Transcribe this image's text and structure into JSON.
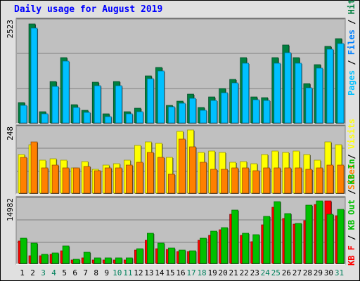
{
  "title": "Daily usage for August 2019",
  "colors": {
    "hits": "#008040",
    "files": "#0080ff",
    "pages": "#00c0ff",
    "visits": "#ffff00",
    "sites": "#ff8000",
    "kbin": "#00c000",
    "kbout": "#00c000",
    "kbf": "#ff0000",
    "weekday_label": "#000000",
    "weekend_label": "#00805c",
    "panel_bg": "#c0c0c0"
  },
  "chart_data": [
    {
      "type": "bar",
      "panel": "hits",
      "ymax_label": "2523",
      "ylim": [
        0,
        2523
      ],
      "categories": [
        "1",
        "2",
        "3",
        "4",
        "5",
        "6",
        "7",
        "8",
        "9",
        "10",
        "11",
        "12",
        "13",
        "14",
        "15",
        "16",
        "17",
        "18",
        "19",
        "20",
        "21",
        "22",
        "23",
        "24",
        "25",
        "26",
        "27",
        "28",
        "29",
        "30",
        "31"
      ],
      "legend": [
        {
          "label": "Hits",
          "color": "#008040"
        },
        {
          "label": "Files",
          "color": "#0080ff"
        },
        {
          "label": "Pages",
          "color": "#00c0ff"
        }
      ],
      "series": [
        {
          "name": "Hits",
          "values": [
            520,
            2480,
            300,
            1050,
            1650,
            480,
            340,
            1030,
            240,
            1050,
            300,
            390,
            1200,
            1410,
            460,
            560,
            740,
            400,
            660,
            870,
            1100,
            1640,
            660,
            640,
            1650,
            1960,
            1640,
            990,
            1470,
            1920,
            2120
          ]
        },
        {
          "name": "Pages",
          "values": [
            460,
            2380,
            240,
            930,
            1560,
            410,
            280,
            950,
            170,
            940,
            240,
            300,
            1120,
            1310,
            420,
            510,
            630,
            330,
            570,
            770,
            1010,
            1510,
            600,
            580,
            1510,
            1770,
            1510,
            890,
            1380,
            1850,
            2000
          ]
        }
      ]
    },
    {
      "type": "bar",
      "panel": "visits",
      "ymax_label": "248",
      "ylim": [
        0,
        248
      ],
      "categories": [
        "1",
        "2",
        "3",
        "4",
        "5",
        "6",
        "7",
        "8",
        "9",
        "10",
        "11",
        "12",
        "13",
        "14",
        "15",
        "16",
        "17",
        "18",
        "19",
        "20",
        "21",
        "22",
        "23",
        "24",
        "25",
        "26",
        "27",
        "28",
        "29",
        "30",
        "31"
      ],
      "legend": [
        {
          "label": "Visits",
          "color": "#ffff00"
        },
        {
          "label": "Sites",
          "color": "#ff8000"
        }
      ],
      "series": [
        {
          "name": "Visits",
          "values": [
            150,
            190,
            130,
            135,
            130,
            100,
            125,
            95,
            110,
            115,
            130,
            185,
            200,
            195,
            140,
            240,
            245,
            160,
            165,
            160,
            120,
            125,
            115,
            150,
            165,
            160,
            165,
            150,
            130,
            200,
            190
          ]
        },
        {
          "name": "Sites",
          "values": [
            140,
            200,
            100,
            110,
            100,
            100,
            105,
            90,
            100,
            100,
            110,
            120,
            160,
            140,
            75,
            210,
            180,
            120,
            95,
            95,
            100,
            100,
            90,
            100,
            100,
            100,
            100,
            95,
            100,
            110,
            110
          ]
        }
      ]
    },
    {
      "type": "bar",
      "panel": "kbytes",
      "ymax_label": "14982",
      "ylim": [
        0,
        14982
      ],
      "categories": [
        "1",
        "2",
        "3",
        "4",
        "5",
        "6",
        "7",
        "8",
        "9",
        "10",
        "11",
        "12",
        "13",
        "14",
        "15",
        "16",
        "17",
        "18",
        "19",
        "20",
        "21",
        "22",
        "23",
        "24",
        "25",
        "26",
        "27",
        "28",
        "29",
        "30",
        "31"
      ],
      "legend": [
        {
          "label": "KB In",
          "color": "#00c000"
        },
        {
          "label": "KB Out",
          "color": "#00c000"
        },
        {
          "label": "KB F",
          "color": "#ff0000"
        }
      ],
      "series": [
        {
          "name": "KB F",
          "values": [
            5550,
            2050,
            2050,
            2300,
            3100,
            1000,
            1550,
            1000,
            1000,
            1050,
            1050,
            3250,
            5700,
            3700,
            3500,
            3050,
            2950,
            5700,
            6900,
            8150,
            11750,
            6850,
            5250,
            9250,
            13450,
            10850,
            9500,
            10300,
            14150,
            14950,
            11550
          ]
        },
        {
          "name": "KB In",
          "values": [
            6100,
            4950,
            2300,
            2600,
            4300,
            1150,
            2850,
            1500,
            1450,
            1550,
            1550,
            3700,
            7300,
            4950,
            3900,
            3300,
            3150,
            6150,
            7900,
            8700,
            12800,
            7350,
            7000,
            11350,
            14750,
            12000,
            9600,
            13900,
            14950,
            11850,
            12950
          ]
        }
      ]
    }
  ],
  "day_labels": [
    {
      "label": "1",
      "weekend": false
    },
    {
      "label": "2",
      "weekend": false
    },
    {
      "label": "3",
      "weekend": true
    },
    {
      "label": "4",
      "weekend": true
    },
    {
      "label": "5",
      "weekend": false
    },
    {
      "label": "6",
      "weekend": false
    },
    {
      "label": "7",
      "weekend": false
    },
    {
      "label": "8",
      "weekend": false
    },
    {
      "label": "9",
      "weekend": false
    },
    {
      "label": "10",
      "weekend": true
    },
    {
      "label": "11",
      "weekend": true
    },
    {
      "label": "12",
      "weekend": false
    },
    {
      "label": "13",
      "weekend": false
    },
    {
      "label": "14",
      "weekend": false
    },
    {
      "label": "15",
      "weekend": false
    },
    {
      "label": "16",
      "weekend": false
    },
    {
      "label": "17",
      "weekend": true
    },
    {
      "label": "18",
      "weekend": true
    },
    {
      "label": "19",
      "weekend": false
    },
    {
      "label": "20",
      "weekend": false
    },
    {
      "label": "21",
      "weekend": false
    },
    {
      "label": "22",
      "weekend": false
    },
    {
      "label": "23",
      "weekend": false
    },
    {
      "label": "24",
      "weekend": true
    },
    {
      "label": "25",
      "weekend": true
    },
    {
      "label": "26",
      "weekend": false
    },
    {
      "label": "27",
      "weekend": false
    },
    {
      "label": "28",
      "weekend": false
    },
    {
      "label": "29",
      "weekend": false
    },
    {
      "label": "30",
      "weekend": false
    },
    {
      "label": "31",
      "weekend": true
    }
  ]
}
